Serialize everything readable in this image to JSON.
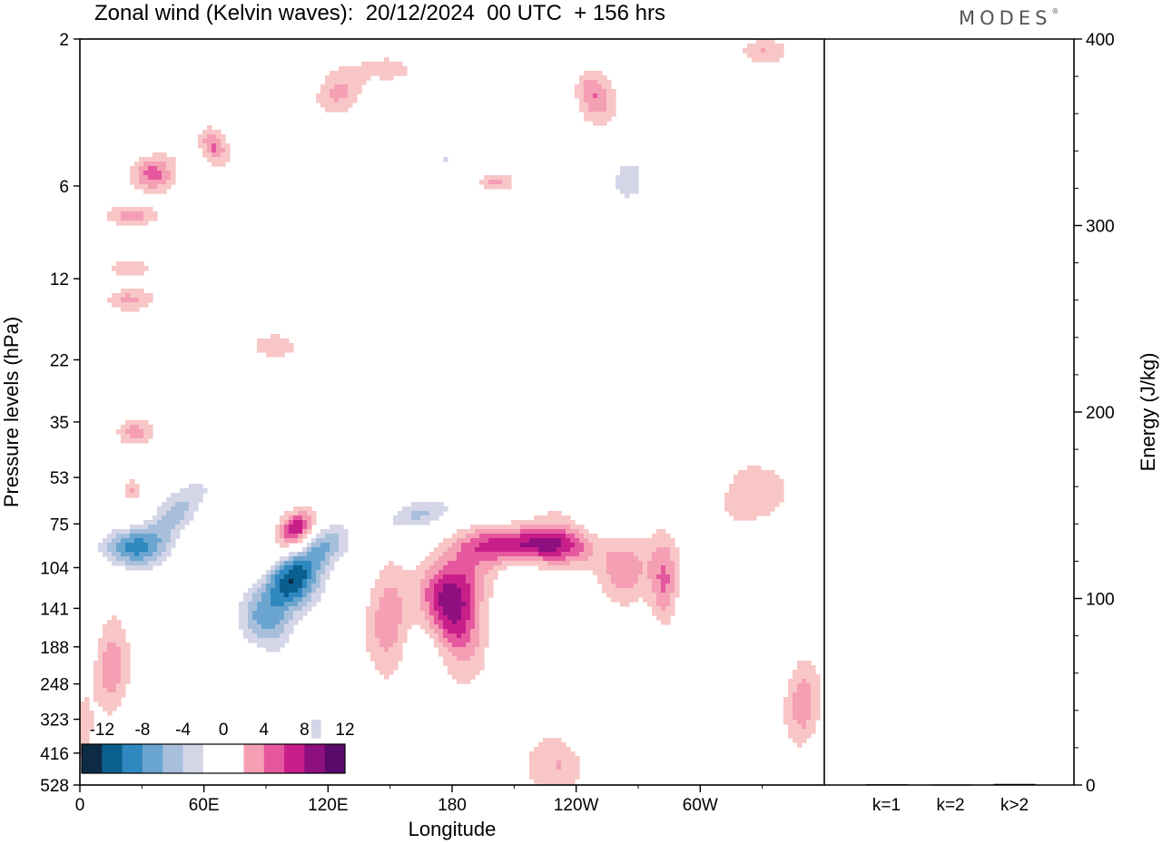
{
  "chart_data": [
    {
      "type": "heatmap",
      "title": "Zonal wind (Kelvin waves):  20/12/2024  00 UTC  + 156 hrs",
      "xlabel": "Longitude",
      "ylabel": "Pressure levels (hPa)",
      "x_ticks": [
        "0",
        "60E",
        "120E",
        "180",
        "120W",
        "60W"
      ],
      "x_tick_positions_deg": [
        0,
        60,
        120,
        180,
        240,
        300
      ],
      "xlim_deg": [
        0,
        360
      ],
      "y_ticks": [
        "2",
        "6",
        "12",
        "22",
        "35",
        "53",
        "75",
        "104",
        "141",
        "188",
        "248",
        "323",
        "416",
        "528"
      ],
      "y_scale": "log",
      "ylim": [
        528,
        2
      ],
      "colorbar": {
        "labels": [
          "-12",
          "-8",
          "-4",
          "0",
          "4",
          "8",
          "12"
        ],
        "levels": [
          -14,
          -12,
          -10,
          -8,
          -6,
          -4,
          -2,
          2,
          4,
          6,
          8,
          10,
          12,
          14
        ],
        "colors": [
          "#0d2b45",
          "#0b5f8f",
          "#2f88bf",
          "#6aa5cf",
          "#a8bfdc",
          "#d4d6e8",
          "#ffffff",
          "#ffffff",
          "#f8c6c6",
          "#f59fb5",
          "#e5589e",
          "#c81e8a",
          "#8e0f80",
          "#5a0a6b"
        ]
      },
      "features": [
        {
          "sign": "negative",
          "peak": -14,
          "lon": 102,
          "p": 110
        },
        {
          "sign": "negative",
          "peak": -10,
          "lon": 25,
          "p": 90
        },
        {
          "sign": "negative",
          "peak": -6,
          "lon": 120,
          "p": 90
        },
        {
          "sign": "negative",
          "peak": -6,
          "lon": 165,
          "p": 70
        },
        {
          "sign": "positive",
          "peak": 8,
          "lon": 105,
          "p": 78
        },
        {
          "sign": "positive",
          "peak": 8,
          "lon": 210,
          "p": 88
        },
        {
          "sign": "positive",
          "peak": 8,
          "lon": 180,
          "p": 155
        },
        {
          "sign": "positive",
          "peak": 6,
          "lon": 283,
          "p": 120
        },
        {
          "sign": "positive",
          "peak": 4,
          "lon": 235,
          "p": 470
        }
      ]
    },
    {
      "type": "bar",
      "categories": [
        "k=1",
        "k=2",
        "k>2"
      ],
      "values": [
        0.4,
        0.3,
        0.6
      ],
      "ylabel": "Energy (J/kg)",
      "ylim": [
        0,
        400
      ],
      "y_ticks": [
        "0",
        "100",
        "200",
        "300",
        "400"
      ]
    }
  ],
  "brand": "MODES",
  "brand_mark": "®",
  "colors": {
    "background": "#ffffff",
    "axis": "#000000",
    "brand": "#555555"
  }
}
